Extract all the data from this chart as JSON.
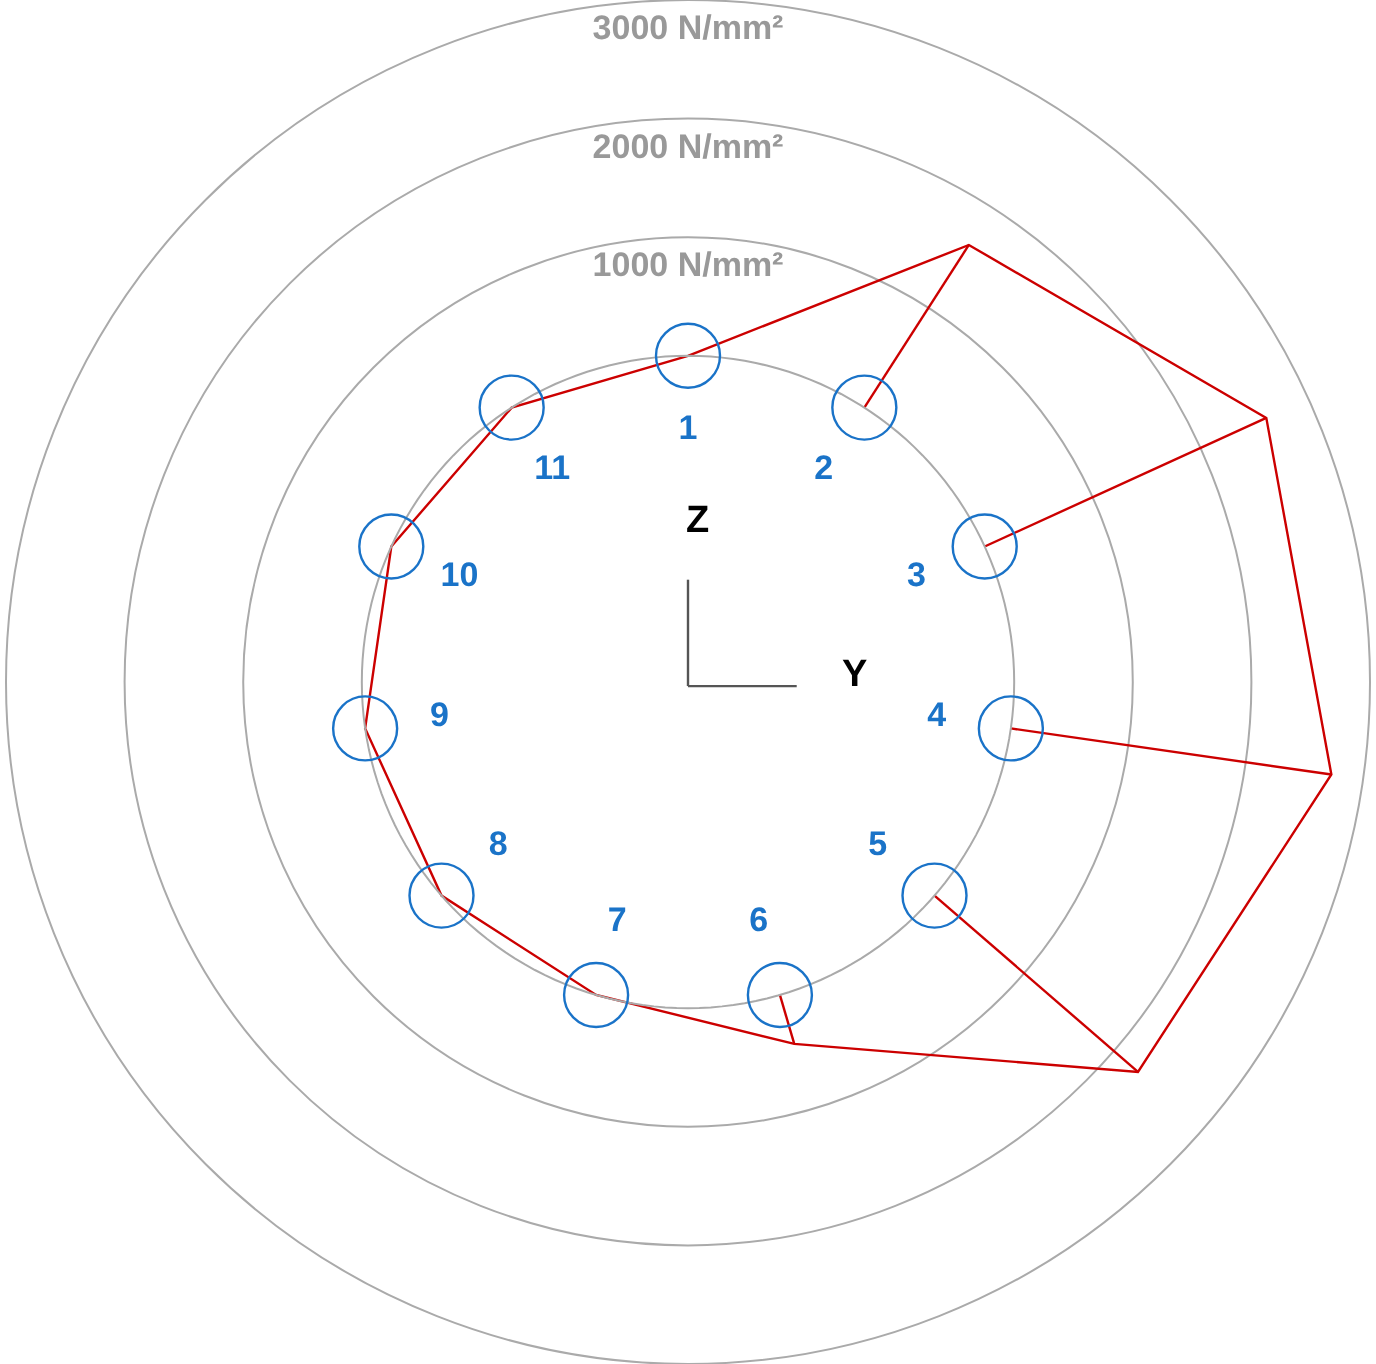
{
  "chart_data": {
    "type": "radar",
    "categories": [
      "1",
      "2",
      "3",
      "4",
      "5",
      "6",
      "7",
      "8",
      "9",
      "10",
      "11"
    ],
    "series": [
      {
        "color": "#cc0000",
        "values": [
          0,
          1630,
          2610,
          2730,
          2270,
          430,
          0,
          0,
          0,
          0,
          0
        ]
      }
    ],
    "ylim": [
      -2750,
      3000
    ],
    "yticks": [
      {
        "value": 1000,
        "label": "1000 N/mm²"
      },
      {
        "value": 2000,
        "label": "2000 N/mm²"
      },
      {
        "value": 3000,
        "label": "3000 N/mm²"
      }
    ],
    "grid": true,
    "annotations": [
      "Z",
      "Y"
    ]
  }
}
